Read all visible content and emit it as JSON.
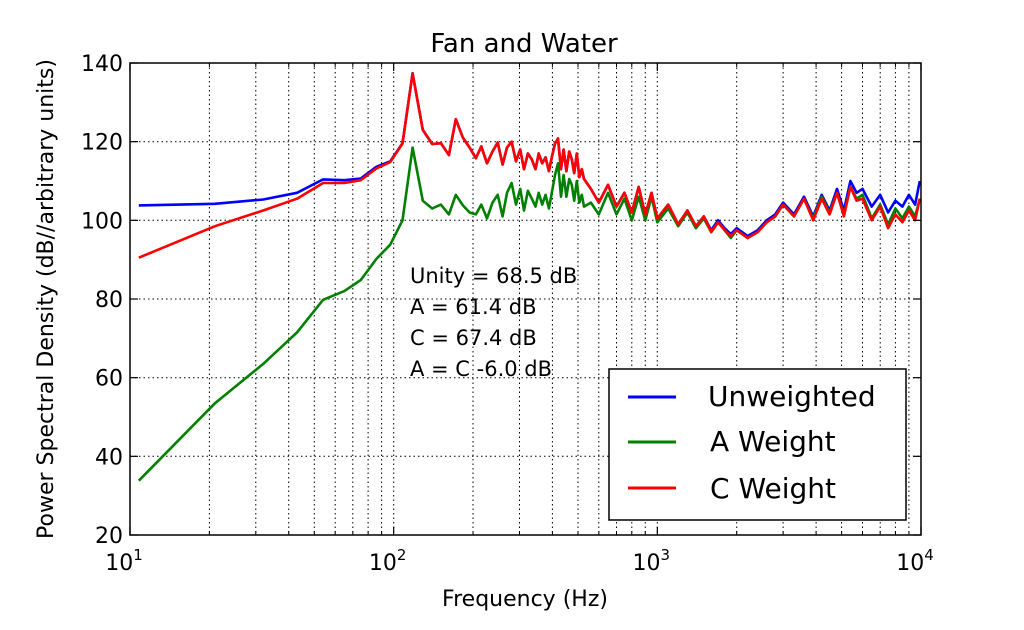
{
  "chart_data": {
    "type": "line",
    "title": "Fan and Water",
    "xlabel": "Frequency (Hz)",
    "ylabel": "Power Spectral Density (dB//arbitrary units)",
    "xscale": "log",
    "xlim": [
      10,
      10000
    ],
    "ylim": [
      20,
      140
    ],
    "grid": true,
    "legend_position": "lower-right",
    "x_ticks": [
      {
        "base": "10",
        "exp": "1"
      },
      {
        "base": "10",
        "exp": "2"
      },
      {
        "base": "10",
        "exp": "3"
      },
      {
        "base": "10",
        "exp": "4"
      }
    ],
    "y_ticks": [
      "20",
      "40",
      "60",
      "80",
      "100",
      "120",
      "140"
    ],
    "annotations": [
      "Unity = 68.5 dB",
      "A = 61.4 dB",
      "C = 67.4 dB",
      "A = C -6.0 dB"
    ],
    "series": [
      {
        "name": "Unweighted",
        "color": "#0000ff",
        "x": [
          10.8,
          21,
          32,
          43,
          54,
          65,
          75,
          86,
          97,
          108,
          118,
          129,
          140,
          151,
          162,
          172,
          183,
          194,
          205,
          215,
          226,
          237,
          248,
          259,
          269,
          280,
          291,
          302,
          312,
          323,
          334,
          345,
          355,
          366,
          377,
          388,
          398,
          409,
          420,
          431,
          441,
          452,
          463,
          474,
          484,
          495,
          506,
          517,
          527,
          560,
          600,
          650,
          700,
          750,
          800,
          850,
          900,
          950,
          1000,
          1100,
          1200,
          1300,
          1400,
          1500,
          1600,
          1700,
          1800,
          1900,
          2000,
          2200,
          2400,
          2600,
          2800,
          3000,
          3300,
          3600,
          3900,
          4200,
          4500,
          4800,
          5100,
          5400,
          5700,
          6000,
          6500,
          7000,
          7500,
          8000,
          8500,
          9000,
          9500,
          9900
        ],
        "y": [
          103.8,
          104.2,
          105.3,
          107.0,
          110.4,
          110.2,
          110.6,
          113.6,
          115.0,
          119.6,
          137.4,
          123.0,
          119.4,
          119.6,
          116.6,
          125.7,
          121.0,
          118.5,
          115.8,
          118.8,
          114.5,
          117.5,
          119.8,
          114.2,
          118.5,
          120.0,
          115.0,
          118.0,
          113.0,
          117.0,
          115.5,
          113.0,
          117.0,
          114.5,
          116.0,
          112.5,
          116.0,
          119.5,
          120.8,
          113.0,
          118.0,
          112.5,
          117.5,
          115.5,
          112.0,
          117.0,
          111.0,
          113.0,
          110.5,
          108.0,
          104.5,
          109.0,
          103.5,
          107.0,
          102.0,
          108.5,
          101.5,
          107.0,
          100.5,
          104.0,
          99.0,
          102.5,
          98.5,
          101.0,
          97.5,
          100.0,
          98.0,
          96.5,
          98.0,
          96.0,
          97.5,
          100.0,
          101.5,
          104.5,
          101.5,
          106.0,
          101.0,
          106.5,
          102.5,
          108.0,
          102.5,
          110.0,
          107.0,
          108.0,
          103.5,
          106.5,
          102.0,
          105.0,
          103.5,
          106.5,
          104.0,
          110.0
        ]
      },
      {
        "name": "A Weight",
        "color": "#008000",
        "x": [
          10.8,
          21,
          32,
          43,
          54,
          65,
          75,
          86,
          97,
          108,
          118,
          129,
          140,
          151,
          162,
          172,
          183,
          194,
          205,
          215,
          226,
          237,
          248,
          259,
          269,
          280,
          291,
          302,
          312,
          323,
          334,
          345,
          355,
          366,
          377,
          388,
          398,
          409,
          420,
          431,
          441,
          452,
          463,
          474,
          484,
          495,
          506,
          517,
          527,
          560,
          600,
          650,
          700,
          750,
          800,
          850,
          900,
          950,
          1000,
          1100,
          1200,
          1300,
          1400,
          1500,
          1600,
          1700,
          1800,
          1900,
          2000,
          2200,
          2400,
          2600,
          2800,
          3000,
          3300,
          3600,
          3900,
          4200,
          4500,
          4800,
          5100,
          5400,
          5700,
          6000,
          6500,
          7000,
          7500,
          8000,
          8500,
          9000,
          9500,
          9900
        ],
        "y": [
          33.8,
          53.5,
          63.5,
          71.5,
          79.8,
          82.0,
          84.8,
          90.2,
          93.8,
          100.0,
          118.5,
          105.0,
          103.0,
          104.0,
          101.5,
          106.5,
          103.8,
          102.0,
          101.5,
          104.0,
          100.5,
          104.5,
          106.5,
          101.0,
          107.0,
          109.5,
          104.0,
          108.0,
          102.5,
          107.5,
          105.5,
          103.5,
          107.0,
          104.0,
          106.5,
          103.0,
          107.0,
          111.5,
          114.5,
          106.0,
          111.5,
          106.0,
          110.5,
          109.0,
          105.0,
          110.0,
          104.5,
          106.5,
          103.5,
          104.5,
          101.5,
          107.0,
          101.5,
          105.5,
          100.0,
          106.0,
          100.0,
          106.0,
          99.5,
          103.0,
          98.5,
          102.0,
          98.0,
          100.5,
          97.0,
          99.5,
          97.5,
          95.5,
          97.5,
          95.5,
          97.0,
          99.5,
          101.0,
          104.0,
          101.0,
          105.5,
          100.5,
          106.0,
          102.0,
          107.0,
          101.5,
          108.5,
          105.5,
          106.5,
          100.5,
          104.0,
          99.0,
          103.0,
          100.5,
          103.5,
          101.0,
          105.5
        ]
      },
      {
        "name": "C Weight",
        "color": "#ff0000",
        "x": [
          10.8,
          21,
          32,
          43,
          54,
          65,
          75,
          86,
          97,
          108,
          118,
          129,
          140,
          151,
          162,
          172,
          183,
          194,
          205,
          215,
          226,
          237,
          248,
          259,
          269,
          280,
          291,
          302,
          312,
          323,
          334,
          345,
          355,
          366,
          377,
          388,
          398,
          409,
          420,
          431,
          441,
          452,
          463,
          474,
          484,
          495,
          506,
          517,
          527,
          560,
          600,
          650,
          700,
          750,
          800,
          850,
          900,
          950,
          1000,
          1100,
          1200,
          1300,
          1400,
          1500,
          1600,
          1700,
          1800,
          1900,
          2000,
          2200,
          2400,
          2600,
          2800,
          3000,
          3300,
          3600,
          3900,
          4200,
          4500,
          4800,
          5100,
          5400,
          5700,
          6000,
          6500,
          7000,
          7500,
          8000,
          8500,
          9000,
          9500,
          9900
        ],
        "y": [
          90.5,
          98.5,
          102.5,
          105.5,
          109.5,
          109.5,
          110.2,
          113.2,
          114.8,
          119.5,
          137.3,
          123.0,
          119.4,
          119.6,
          116.6,
          125.7,
          121.0,
          118.5,
          115.8,
          118.8,
          114.5,
          117.5,
          119.8,
          114.2,
          118.5,
          120.0,
          115.0,
          118.0,
          113.0,
          117.0,
          115.5,
          113.0,
          117.0,
          114.5,
          116.0,
          112.5,
          116.0,
          119.5,
          120.8,
          113.0,
          118.0,
          112.5,
          117.5,
          115.5,
          112.0,
          117.0,
          111.0,
          113.0,
          110.5,
          108.0,
          104.5,
          109.0,
          103.5,
          107.0,
          102.0,
          108.5,
          101.5,
          107.0,
          100.5,
          104.0,
          99.0,
          102.5,
          98.5,
          101.0,
          97.0,
          99.5,
          97.5,
          96.0,
          97.5,
          95.5,
          97.0,
          99.5,
          101.0,
          104.0,
          101.0,
          105.5,
          100.0,
          105.5,
          101.5,
          107.0,
          101.0,
          108.5,
          105.0,
          105.5,
          100.0,
          103.5,
          98.0,
          101.5,
          99.5,
          102.5,
          100.0,
          105.5
        ]
      }
    ]
  }
}
